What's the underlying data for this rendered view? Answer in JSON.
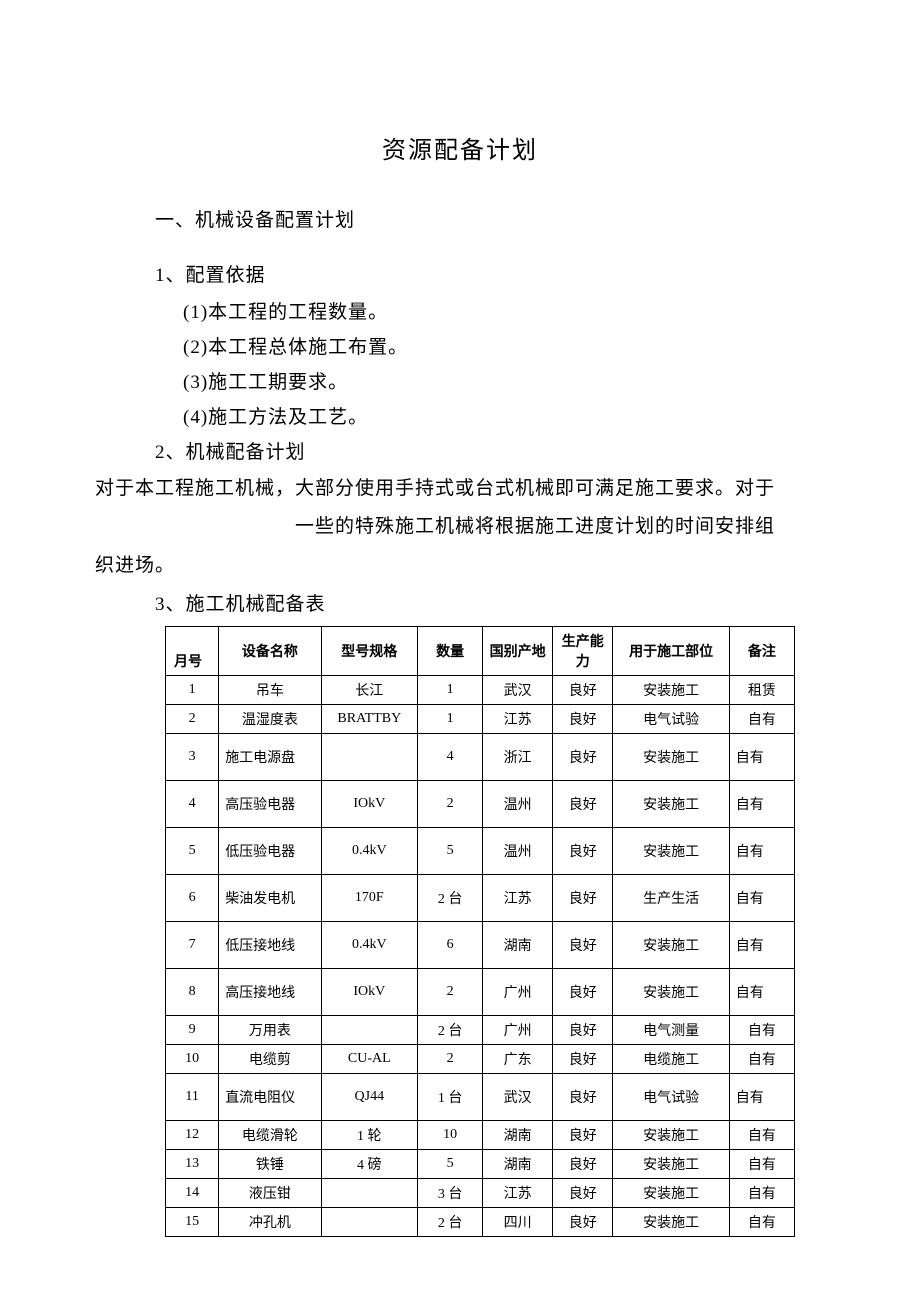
{
  "title": "资源配备计划",
  "section1": {
    "heading": "一、机械设备配置计划",
    "sub1": "1、配置依据",
    "items": [
      "(1)本工程的工程数量。",
      "(2)本工程总体施工布置。",
      "(3)施工工期要求。",
      "(4)施工方法及工艺。"
    ],
    "sub2": "2、机械配备计划",
    "para1": "对于本工程施工机械，大部分使用手持式或台式机械即可满足施工要求。对于",
    "para2": "一些的特殊施工机械将根据施工进度计划的时间安排组",
    "para3": "织进场。",
    "sub3": "3、施工机械配备表"
  },
  "table": {
    "columns": [
      "月号",
      "设备名称",
      "型号规格",
      "数量",
      "国别产地",
      "生产能力",
      "用于施工部位",
      "备注"
    ],
    "rows": [
      {
        "seq": "1",
        "name": "吊车",
        "model": "长江",
        "qty": "1",
        "origin": "武汉",
        "cap": "良好",
        "use": "安装施工",
        "remark": "租赁",
        "tall": false
      },
      {
        "seq": "2",
        "name": "温湿度表",
        "model": "BRATTBY",
        "qty": "1",
        "origin": "江苏",
        "cap": "良好",
        "use": "电气试验",
        "remark": "自有",
        "tall": false
      },
      {
        "seq": "3",
        "name": "施工电源盘",
        "model": "",
        "qty": "4",
        "origin": "浙江",
        "cap": "良好",
        "use": "安装施工",
        "remark": "自有",
        "tall": true
      },
      {
        "seq": "4",
        "name": "高压验电器",
        "model": "IOkV",
        "qty": "2",
        "origin": "温州",
        "cap": "良好",
        "use": "安装施工",
        "remark": "自有",
        "tall": true
      },
      {
        "seq": "5",
        "name": "低压验电器",
        "model": "0.4kV",
        "qty": "5",
        "origin": "温州",
        "cap": "良好",
        "use": "安装施工",
        "remark": "自有",
        "tall": true
      },
      {
        "seq": "6",
        "name": "柴油发电机",
        "model": "170F",
        "qty": "2 台",
        "origin": "江苏",
        "cap": "良好",
        "use": "生产生活",
        "remark": "自有",
        "tall": true
      },
      {
        "seq": "7",
        "name": "低压接地线",
        "model": "0.4kV",
        "qty": "6",
        "origin": "湖南",
        "cap": "良好",
        "use": "安装施工",
        "remark": "自有",
        "tall": true
      },
      {
        "seq": "8",
        "name": "高压接地线",
        "model": "IOkV",
        "qty": "2",
        "origin": "广州",
        "cap": "良好",
        "use": "安装施工",
        "remark": "自有",
        "tall": true
      },
      {
        "seq": "9",
        "name": "万用表",
        "model": "",
        "qty": "2 台",
        "origin": "广州",
        "cap": "良好",
        "use": "电气测量",
        "remark": "自有",
        "tall": false
      },
      {
        "seq": "10",
        "name": "电缆剪",
        "model": "CU-AL",
        "qty": "2",
        "origin": "广东",
        "cap": "良好",
        "use": "电缆施工",
        "remark": "自有",
        "tall": false
      },
      {
        "seq": "11",
        "name": "直流电阻仪",
        "model": "QJ44",
        "qty": "1 台",
        "origin": "武汉",
        "cap": "良好",
        "use": "电气试验",
        "remark": "自有",
        "tall": true
      },
      {
        "seq": "12",
        "name": "电缆滑轮",
        "model": "1 轮",
        "qty": "10",
        "origin": "湖南",
        "cap": "良好",
        "use": "安装施工",
        "remark": "自有",
        "tall": false
      },
      {
        "seq": "13",
        "name": "铁锤",
        "model": "4 磅",
        "qty": "5",
        "origin": "湖南",
        "cap": "良好",
        "use": "安装施工",
        "remark": "自有",
        "tall": false
      },
      {
        "seq": "14",
        "name": "液压钳",
        "model": "",
        "qty": "3 台",
        "origin": "江苏",
        "cap": "良好",
        "use": "安装施工",
        "remark": "自有",
        "tall": false
      },
      {
        "seq": "15",
        "name": "冲孔机",
        "model": "",
        "qty": "2 台",
        "origin": "四川",
        "cap": "良好",
        "use": "安装施工",
        "remark": "自有",
        "tall": false
      }
    ]
  }
}
